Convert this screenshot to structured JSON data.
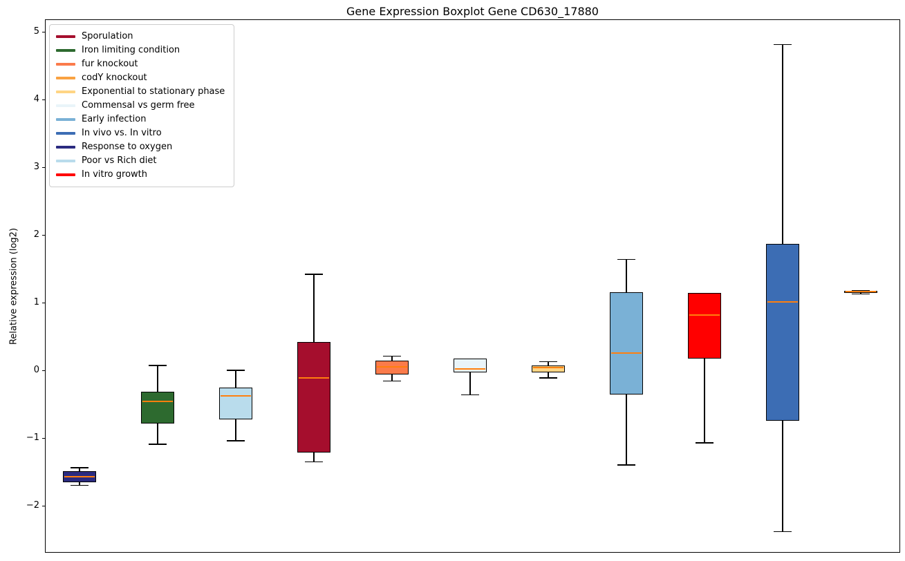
{
  "chart_data": {
    "type": "boxplot",
    "title": "Gene Expression Boxplot Gene CD630_17880",
    "ylabel": "Relative expression (log2)",
    "xlabel": "",
    "ylim": [
      -2.7,
      5.2
    ],
    "y_ticks": [
      5,
      4,
      3,
      2,
      1,
      0,
      -1,
      -2
    ],
    "grid": false,
    "legend_position": "upper left",
    "median_color": "#FF7F0E",
    "whisker_color": "#000000",
    "boxes": [
      {
        "label": "Response to oxygen",
        "color": "#2B2B80",
        "whislo": -1.69,
        "q1": -1.64,
        "med": -1.56,
        "q3": -1.48,
        "whishi": -1.43
      },
      {
        "label": "Iron limiting condition",
        "color": "#2D6A2F",
        "whislo": -1.08,
        "q1": -0.78,
        "med": -0.45,
        "q3": -0.31,
        "whishi": 0.08
      },
      {
        "label": "Poor vs Rich diet",
        "color": "#B9DCEC",
        "whislo": -1.03,
        "q1": -0.71,
        "med": -0.37,
        "q3": -0.24,
        "whishi": 0.01
      },
      {
        "label": "Sporulation",
        "color": "#A50E2D",
        "whislo": -1.34,
        "q1": -1.2,
        "med": -0.1,
        "q3": 0.43,
        "whishi": 1.43
      },
      {
        "label": "fur knockout",
        "color": "#FB7B4B",
        "whislo": -0.15,
        "q1": -0.05,
        "med": 0.06,
        "q3": 0.15,
        "whishi": 0.22
      },
      {
        "label": "Commensal vs germ free",
        "color": "#E9F4F9",
        "whislo": -0.35,
        "q1": -0.02,
        "med": 0.03,
        "q3": 0.18,
        "whishi": 0.18
      },
      {
        "label": "Exponential to stationary phase",
        "color": "#FFD584",
        "whislo": -0.1,
        "q1": -0.02,
        "med": 0.05,
        "q3": 0.08,
        "whishi": 0.14
      },
      {
        "label": "Early infection",
        "color": "#7AB1D6",
        "whislo": -1.39,
        "q1": -0.35,
        "med": 0.27,
        "q3": 1.16,
        "whishi": 1.65
      },
      {
        "label": "In vitro growth",
        "color": "#FF0000",
        "whislo": -1.06,
        "q1": 0.18,
        "med": 0.83,
        "q3": 1.15,
        "whishi": 1.15
      },
      {
        "label": "In vivo vs. In vitro",
        "color": "#3C6DB4",
        "whislo": -2.37,
        "q1": -0.73,
        "med": 1.02,
        "q3": 1.88,
        "whishi": 4.82
      },
      {
        "label": "codY knockout",
        "color": "#F9A242",
        "whislo": 1.14,
        "q1": 1.15,
        "med": 1.17,
        "q3": 1.18,
        "whishi": 1.19
      }
    ]
  },
  "legend": {
    "items": [
      {
        "label": "Sporulation",
        "color": "#A50E2D"
      },
      {
        "label": "Iron limiting condition",
        "color": "#2D6A2F"
      },
      {
        "label": "fur knockout",
        "color": "#FB7B4B"
      },
      {
        "label": "codY knockout",
        "color": "#F9A242"
      },
      {
        "label": "Exponential to stationary phase",
        "color": "#FFD584"
      },
      {
        "label": "Commensal vs germ free",
        "color": "#E9F4F9"
      },
      {
        "label": "Early infection",
        "color": "#7AB1D6"
      },
      {
        "label": "In vivo vs. In vitro",
        "color": "#3C6DB4"
      },
      {
        "label": "Response to oxygen",
        "color": "#2B2B80"
      },
      {
        "label": "Poor vs Rich diet",
        "color": "#B9DCEC"
      },
      {
        "label": "In vitro growth",
        "color": "#FF0000"
      }
    ]
  }
}
